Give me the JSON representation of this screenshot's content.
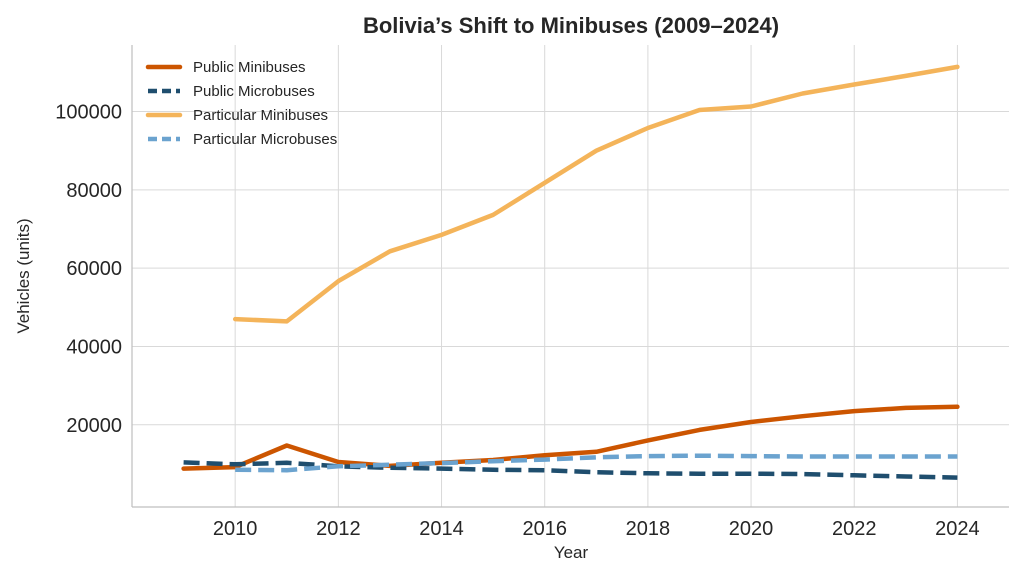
{
  "chart_data": {
    "type": "line",
    "title": "Bolivia’s Shift to Minibuses (2009–2024)",
    "xlabel": "Year",
    "ylabel": "Vehicles (units)",
    "xlim": [
      2008,
      2025
    ],
    "ylim": [
      -1000,
      117000
    ],
    "xticks": [
      2010,
      2012,
      2014,
      2016,
      2018,
      2020,
      2022,
      2024
    ],
    "xtick_labels": [
      "2010",
      "2012",
      "2014",
      "2016",
      "2018",
      "2020",
      "2022",
      "2024"
    ],
    "yticks": [
      20000,
      40000,
      60000,
      80000,
      100000
    ],
    "ytick_labels": [
      "20000",
      "40000",
      "60000",
      "80000",
      "100000"
    ],
    "grid": true,
    "legend_position": "top-left",
    "series": [
      {
        "name": "Public Minibuses",
        "color": "#cc5500",
        "style": "solid",
        "x": [
          2009,
          2010,
          2011,
          2012,
          2013,
          2014,
          2015,
          2016,
          2017,
          2018,
          2019,
          2020,
          2021,
          2022,
          2023,
          2024
        ],
        "values": [
          8800,
          9200,
          14700,
          10500,
          9500,
          10300,
          11000,
          12200,
          13100,
          16000,
          18700,
          20700,
          22200,
          23500,
          24300,
          24600
        ]
      },
      {
        "name": "Public Microbuses",
        "color": "#1f4e6e",
        "style": "dashed",
        "x": [
          2009,
          2010,
          2011,
          2012,
          2013,
          2014,
          2015,
          2016,
          2017,
          2018,
          2019,
          2020,
          2021,
          2022,
          2023,
          2024
        ],
        "values": [
          10400,
          9900,
          10300,
          9400,
          9000,
          8800,
          8500,
          8400,
          7900,
          7600,
          7500,
          7500,
          7400,
          7100,
          6800,
          6500
        ]
      },
      {
        "name": "Particular Minibuses",
        "color": "#f4b45a",
        "style": "solid",
        "x": [
          2010,
          2011,
          2012,
          2013,
          2014,
          2015,
          2016,
          2017,
          2018,
          2019,
          2020,
          2021,
          2022,
          2023,
          2024
        ],
        "values": [
          47000,
          46400,
          56700,
          64300,
          68500,
          73600,
          81800,
          90000,
          95800,
          100400,
          101300,
          104600,
          106900,
          109100,
          111400
        ]
      },
      {
        "name": "Particular Microbuses",
        "color": "#6ba3cf",
        "style": "dashed",
        "x": [
          2010,
          2011,
          2012,
          2013,
          2014,
          2015,
          2016,
          2017,
          2018,
          2019,
          2020,
          2021,
          2022,
          2023,
          2024
        ],
        "values": [
          8500,
          8400,
          9400,
          9800,
          10200,
          10700,
          11100,
          11700,
          12000,
          12100,
          12000,
          11900,
          11900,
          11900,
          11900
        ]
      }
    ]
  }
}
